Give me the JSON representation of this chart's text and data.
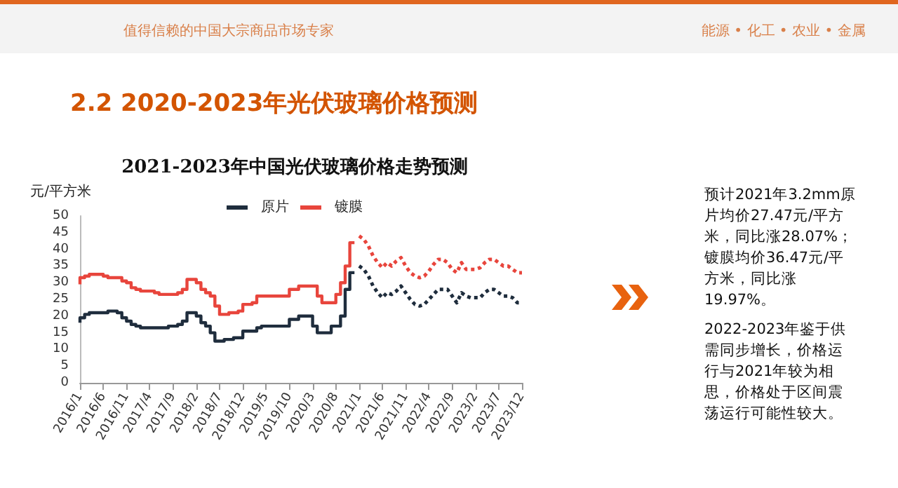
{
  "chart_data": {
    "type": "line",
    "title": "2021-2023年中国光伏玻璃价格走势预测",
    "ylabel": "元/平方米",
    "annotations": [
      "2.2 2020-2023年光伏玻璃价格预测",
      "值得信赖的中国大宗商品市场专家",
      "能源 • 化工 • 农业 • 金属",
      "预计2021年3.2mm原片均价27.47元/平方米，同比涨28.07%；镀膜均价36.47元/平方米，同比涨19.97%。",
      "2022-2023年鉴于供需同步增长，价格运行与2021年较为相思，价格处于区间震荡运行可能性较大。"
    ],
    "categories": [
      "2016/1",
      null,
      null,
      null,
      null,
      "2016/6",
      null,
      null,
      null,
      null,
      "2016/11",
      null,
      null,
      null,
      null,
      "2017/4",
      null,
      null,
      null,
      null,
      "2017/9",
      null,
      null,
      null,
      null,
      "2018/2",
      null,
      null,
      null,
      null,
      "2018/7",
      null,
      null,
      null,
      null,
      "2018/12",
      null,
      null,
      null,
      null,
      "2019/5",
      null,
      null,
      null,
      null,
      "2019/10",
      null,
      null,
      null,
      null,
      "2020/3",
      null,
      null,
      null,
      null,
      "2020/8",
      null,
      null,
      null,
      null,
      "2021/1",
      null,
      null,
      null,
      null,
      "2021/6",
      null,
      null,
      null,
      null,
      "2021/11",
      null,
      null,
      null,
      null,
      "2022/4",
      null,
      null,
      null,
      null,
      "2022/9",
      null,
      null,
      null,
      null,
      "2023/2",
      null,
      null,
      null,
      null,
      "2023/7",
      null,
      null,
      null,
      null,
      "2023/12"
    ],
    "series": [
      {
        "name": "原片",
        "type": "step",
        "color": "#1f2d3d",
        "line_style": "solid",
        "values": [
          18,
          19.5,
          20.5,
          21,
          21,
          21,
          21,
          21.5,
          21.5,
          21,
          19.5,
          18.5,
          17.5,
          17,
          16.5,
          16.5,
          16.5,
          16.5,
          16.5,
          16.5,
          17,
          17,
          17.5,
          18.5,
          21,
          21,
          20,
          18,
          17,
          15,
          12.5,
          12.5,
          13,
          13,
          13.5,
          13.5,
          15.5,
          15.5,
          15.5,
          16.5,
          17,
          17,
          17,
          17,
          17,
          17,
          19,
          19,
          20,
          20,
          20,
          17,
          15,
          15,
          15,
          17,
          17,
          20,
          28,
          33,
          null,
          null,
          null,
          null,
          null,
          null,
          null,
          null,
          null,
          null,
          null,
          null,
          null,
          null,
          null,
          null,
          null,
          null,
          null,
          null,
          null,
          null,
          null,
          null,
          null,
          null,
          null,
          null,
          null,
          null,
          null,
          null,
          null,
          null,
          null,
          null
        ]
      },
      {
        "name": "镀膜",
        "type": "step",
        "color": "#e8453c",
        "line_style": "solid",
        "values": [
          29.5,
          31.5,
          32,
          32.5,
          32.5,
          32.5,
          32,
          31.5,
          31.5,
          31.5,
          30.5,
          30,
          28.5,
          28,
          27.5,
          27.5,
          27.5,
          27,
          26.5,
          26.5,
          26.5,
          26.5,
          27,
          28,
          31,
          31,
          30,
          28,
          27,
          26,
          23,
          20.5,
          20.5,
          21,
          21,
          21.5,
          23.5,
          23.5,
          24,
          26,
          26,
          26,
          26,
          26,
          26,
          26,
          28,
          28,
          29,
          29,
          29,
          29,
          26,
          24,
          24,
          24,
          26.5,
          30,
          35,
          42,
          null,
          null,
          null,
          null,
          null,
          null,
          null,
          null,
          null,
          null,
          null,
          null,
          null,
          null,
          null,
          null,
          null,
          null,
          null,
          null,
          null,
          null,
          null,
          null,
          null,
          null,
          null,
          null,
          null,
          null,
          null,
          null,
          null,
          null,
          null,
          null
        ]
      },
      {
        "type": "line",
        "color": "#1f2d3d",
        "line_style": "dotted",
        "values": [
          null,
          null,
          null,
          null,
          null,
          null,
          null,
          null,
          null,
          null,
          null,
          null,
          null,
          null,
          null,
          null,
          null,
          null,
          null,
          null,
          null,
          null,
          null,
          null,
          null,
          null,
          null,
          null,
          null,
          null,
          null,
          null,
          null,
          null,
          null,
          null,
          null,
          null,
          null,
          null,
          null,
          null,
          null,
          null,
          null,
          null,
          null,
          null,
          null,
          null,
          null,
          null,
          null,
          null,
          null,
          null,
          null,
          null,
          null,
          null,
          35,
          34,
          32,
          29,
          27,
          25.5,
          27,
          26.5,
          27.5,
          29,
          27,
          25,
          23.5,
          23,
          23.5,
          25,
          26.5,
          28,
          28,
          28,
          26,
          24,
          27,
          26,
          25.5,
          25.5,
          25.5,
          27,
          28,
          28,
          27,
          26,
          26,
          25.5,
          24,
          24
        ]
      },
      {
        "type": "line",
        "color": "#e8453c",
        "line_style": "dotted",
        "values": [
          null,
          null,
          null,
          null,
          null,
          null,
          null,
          null,
          null,
          null,
          null,
          null,
          null,
          null,
          null,
          null,
          null,
          null,
          null,
          null,
          null,
          null,
          null,
          null,
          null,
          null,
          null,
          null,
          null,
          null,
          null,
          null,
          null,
          null,
          null,
          null,
          null,
          null,
          null,
          null,
          null,
          null,
          null,
          null,
          null,
          null,
          null,
          null,
          null,
          null,
          null,
          null,
          null,
          null,
          null,
          null,
          null,
          null,
          null,
          null,
          44,
          43,
          41,
          38,
          36,
          34.5,
          36,
          35,
          36.5,
          37.5,
          35,
          33,
          32,
          31.5,
          32,
          33.5,
          35.5,
          37,
          37,
          36,
          34,
          33,
          36,
          34,
          34,
          34,
          34.5,
          36,
          37,
          37,
          36,
          35,
          35,
          34,
          33,
          33
        ]
      }
    ],
    "ylim": [
      0,
      50
    ],
    "yticks": [
      0,
      5,
      10,
      15,
      20,
      25,
      30,
      35,
      40,
      45,
      50
    ],
    "grid": false,
    "legend": "top",
    "marker": "none"
  }
}
